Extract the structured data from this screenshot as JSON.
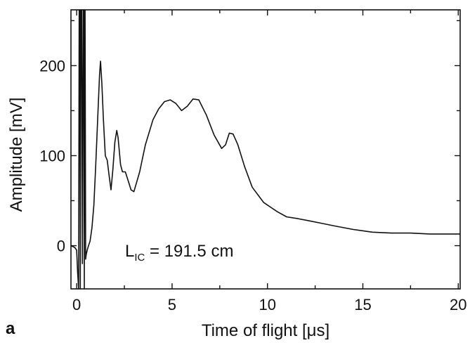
{
  "panel_label": "a",
  "chart_data": {
    "type": "line",
    "title": "",
    "xlabel": "Time of flight [μs]",
    "ylabel": "Amplitude [mV]",
    "xlim": [
      -0.3,
      20.1
    ],
    "ylim": [
      -48,
      262
    ],
    "xticks": [
      0,
      5,
      10,
      15,
      20
    ],
    "yticks": [
      0,
      100,
      200
    ],
    "grid": false,
    "annotation": {
      "main": "L",
      "sub": "IC",
      "rest": " = 191.5 cm"
    },
    "series": [
      {
        "color": "#111111",
        "x": [
          -0.3,
          -0.1,
          0.0,
          0.05,
          0.1,
          0.13,
          0.16,
          0.19,
          0.22,
          0.26,
          0.3,
          0.34,
          0.37,
          0.4,
          0.42,
          0.44,
          0.47,
          0.5,
          0.55,
          0.62,
          0.7,
          0.8,
          0.9,
          1.0,
          1.1,
          1.2,
          1.25,
          1.32,
          1.4,
          1.5,
          1.6,
          1.7,
          1.8,
          1.9,
          2.0,
          2.1,
          2.17,
          2.3,
          2.4,
          2.55,
          2.7,
          2.85,
          3.0,
          3.3,
          3.6,
          4.0,
          4.3,
          4.6,
          4.9,
          5.2,
          5.5,
          5.8,
          6.1,
          6.4,
          6.8,
          7.2,
          7.6,
          7.8,
          8.0,
          8.2,
          8.45,
          8.8,
          9.2,
          9.8,
          10.5,
          11.0,
          11.6,
          12.1,
          12.8,
          13.5,
          14.5,
          15.5,
          16.5,
          17.5,
          18.5,
          19.5,
          20.1
        ],
        "y": [
          0,
          -2,
          -5,
          -30,
          -48,
          262,
          262,
          -48,
          262,
          262,
          -20,
          262,
          262,
          -48,
          262,
          262,
          -15,
          -10,
          -5,
          0,
          5,
          20,
          45,
          90,
          140,
          190,
          205,
          180,
          140,
          100,
          95,
          78,
          62,
          85,
          115,
          128,
          120,
          90,
          82,
          82,
          72,
          62,
          60,
          82,
          112,
          140,
          152,
          160,
          162,
          158,
          150,
          155,
          163,
          162,
          145,
          123,
          108,
          112,
          125,
          124,
          112,
          88,
          65,
          48,
          38,
          32,
          30,
          28,
          25,
          22,
          18,
          15,
          14,
          14,
          13,
          13,
          13
        ]
      }
    ]
  }
}
